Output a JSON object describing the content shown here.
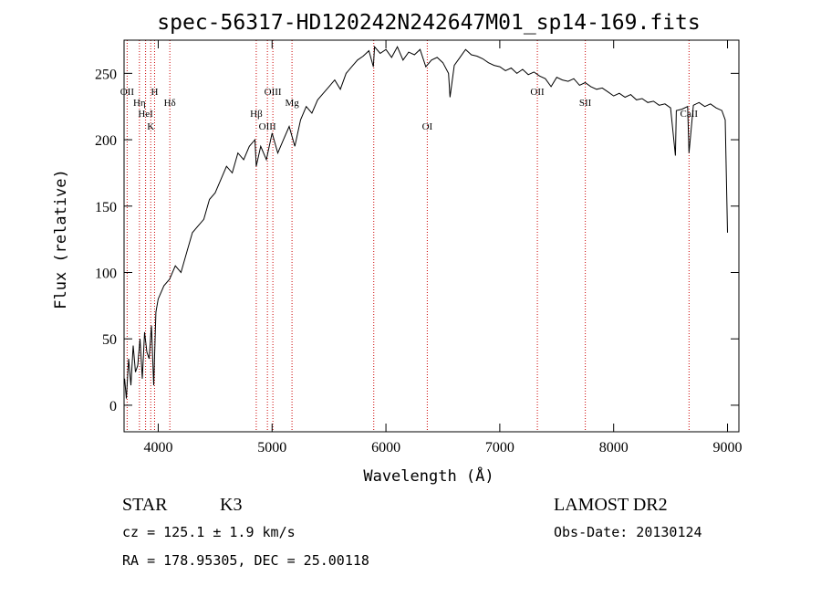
{
  "chart_data": {
    "type": "line",
    "title": "spec-56317-HD120242N242647M01_sp14-169.fits",
    "xlabel": "Wavelength (Å)",
    "ylabel": "Flux (relative)",
    "xlim": [
      3700,
      9100
    ],
    "ylim": [
      -20,
      275
    ],
    "xticks": [
      4000,
      5000,
      6000,
      7000,
      8000,
      9000
    ],
    "yticks": [
      0,
      50,
      100,
      150,
      200,
      250
    ],
    "grid": false,
    "line_color": "#000000",
    "marker_color": "#cc0000",
    "series": [
      {
        "x": [
          3705,
          3720,
          3740,
          3760,
          3780,
          3800,
          3820,
          3840,
          3860,
          3880,
          3900,
          3920,
          3940,
          3960,
          3980,
          4000,
          4050,
          4100,
          4150,
          4200,
          4250,
          4300,
          4350,
          4400,
          4450,
          4500,
          4550,
          4600,
          4650,
          4700,
          4750,
          4800,
          4850,
          4861,
          4900,
          4950,
          5000,
          5050,
          5100,
          5150,
          5200,
          5250,
          5300,
          5350,
          5400,
          5450,
          5500,
          5550,
          5600,
          5650,
          5700,
          5750,
          5800,
          5850,
          5890,
          5900,
          5950,
          6000,
          6050,
          6100,
          6150,
          6200,
          6250,
          6300,
          6350,
          6400,
          6450,
          6500,
          6550,
          6563,
          6600,
          6650,
          6700,
          6750,
          6800,
          6850,
          6900,
          6950,
          7000,
          7050,
          7100,
          7150,
          7200,
          7250,
          7300,
          7350,
          7400,
          7450,
          7500,
          7550,
          7600,
          7650,
          7700,
          7750,
          7800,
          7850,
          7900,
          7950,
          8000,
          8050,
          8100,
          8150,
          8200,
          8250,
          8300,
          8350,
          8400,
          8450,
          8500,
          8542,
          8550,
          8600,
          8650,
          8662,
          8700,
          8750,
          8800,
          8850,
          8900,
          8950,
          8980,
          9000
        ],
        "y": [
          20,
          5,
          35,
          15,
          45,
          25,
          30,
          50,
          20,
          55,
          40,
          35,
          60,
          15,
          70,
          80,
          90,
          95,
          105,
          100,
          115,
          130,
          135,
          140,
          155,
          160,
          170,
          180,
          175,
          190,
          185,
          195,
          200,
          180,
          195,
          185,
          205,
          190,
          200,
          210,
          195,
          215,
          225,
          220,
          230,
          235,
          240,
          245,
          238,
          250,
          255,
          260,
          263,
          267,
          255,
          270,
          265,
          268,
          262,
          270,
          260,
          266,
          264,
          268,
          255,
          260,
          262,
          258,
          250,
          232,
          256,
          262,
          268,
          264,
          263,
          261,
          258,
          256,
          255,
          252,
          254,
          250,
          253,
          249,
          251,
          248,
          246,
          240,
          247,
          245,
          244,
          246,
          241,
          243,
          240,
          238,
          239,
          236,
          233,
          235,
          232,
          234,
          230,
          231,
          228,
          229,
          226,
          227,
          224,
          188,
          222,
          223,
          225,
          190,
          226,
          228,
          225,
          227,
          224,
          222,
          215,
          130
        ]
      }
    ],
    "line_markers": [
      {
        "label": "OII",
        "wavelength": 3727
      },
      {
        "label": "Hη",
        "wavelength": 3835
      },
      {
        "label": "HeI",
        "wavelength": 3889
      },
      {
        "label": "K",
        "wavelength": 3934
      },
      {
        "label": "H",
        "wavelength": 3968
      },
      {
        "label": "Hδ",
        "wavelength": 4102
      },
      {
        "label": "Hβ",
        "wavelength": 4861
      },
      {
        "label": "OIII",
        "wavelength": 4959
      },
      {
        "label": "OIII",
        "wavelength": 5007
      },
      {
        "label": "Mg",
        "wavelength": 5175
      },
      {
        "label": "",
        "wavelength": 5893
      },
      {
        "label": "OI",
        "wavelength": 6363
      },
      {
        "label": "OII",
        "wavelength": 7330
      },
      {
        "label": "SII",
        "wavelength": 7751
      },
      {
        "label": "CaII",
        "wavelength": 8662
      }
    ]
  },
  "info": {
    "object_class": "STAR",
    "subclass": "K3",
    "survey": "LAMOST DR2",
    "cz": "cz = 125.1 ± 1.9 km/s",
    "obs_date": "Obs-Date: 20130124",
    "coords": "RA = 178.95305, DEC =  25.00118"
  }
}
